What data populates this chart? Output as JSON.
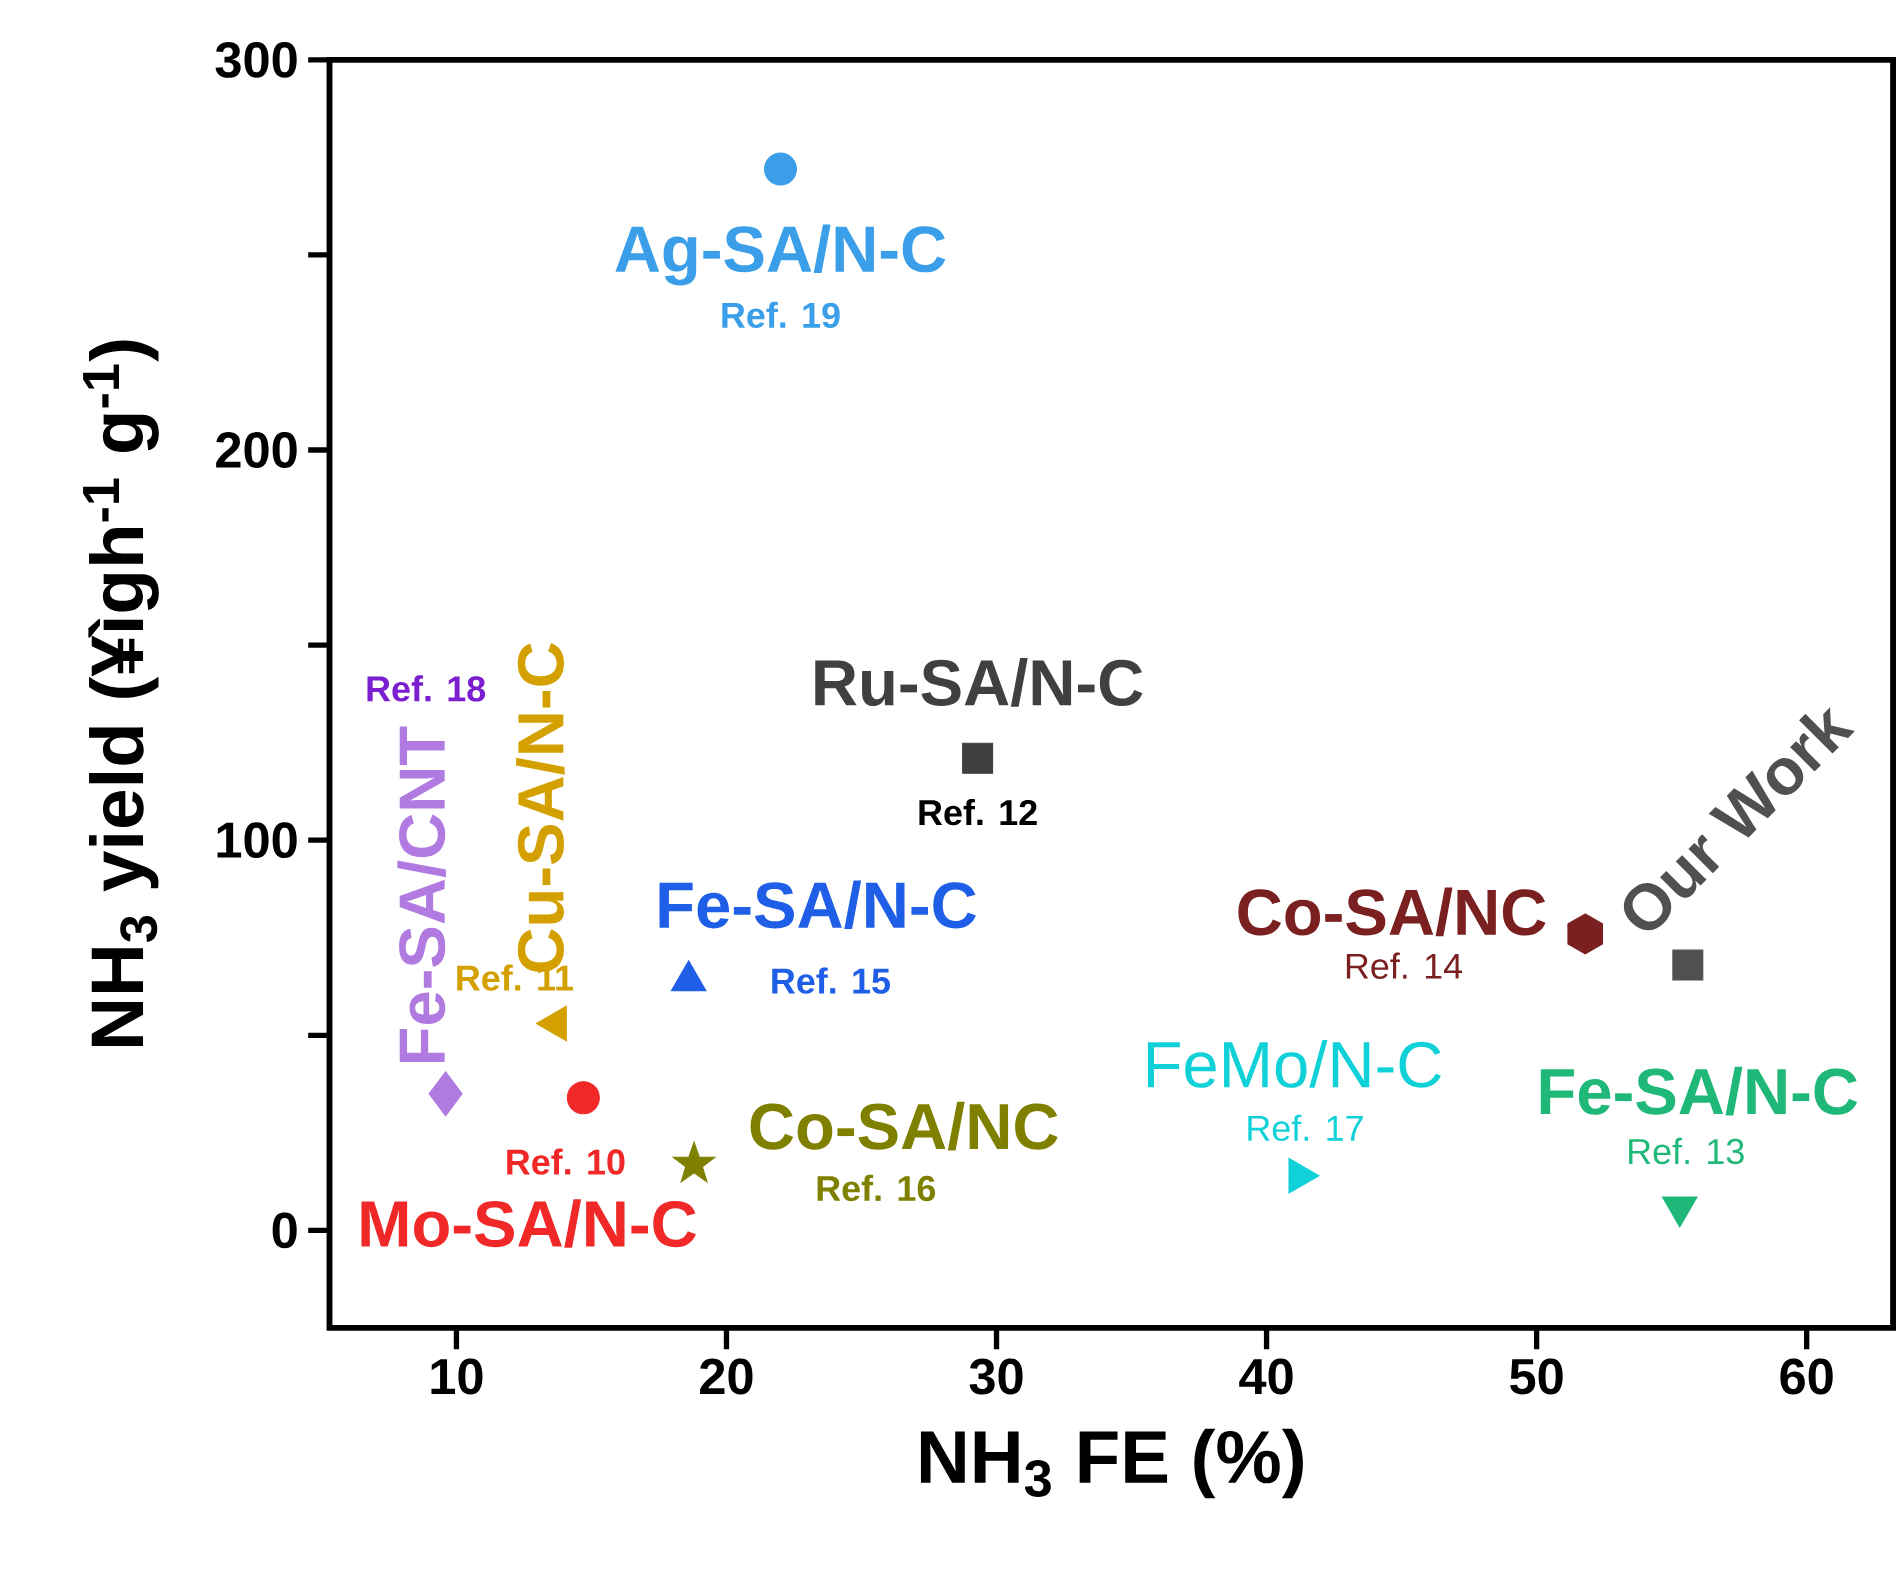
{
  "chart_data": {
    "type": "scatter",
    "xlabel": "NH$_{3}$ FE (%)",
    "ylabel": "NH$_{3}$ yield (¥ìgh$^{-1}$ g$^{-1}$)",
    "xlim": [
      5.3,
      63.2
    ],
    "ylim": [
      -25,
      300
    ],
    "xticks": [
      10,
      20,
      30,
      40,
      50,
      60
    ],
    "yticks": [
      0,
      {
        "value": 50,
        "label": null
      },
      100,
      {
        "value": 150,
        "label": null
      },
      200,
      {
        "value": 250,
        "label": null
      },
      300
    ],
    "series": [
      {
        "name": "Ag-SA/N-C",
        "color": "#3a9ee8",
        "x": [
          22.0
        ],
        "values": [
          272
        ],
        "marker": "circle"
      },
      {
        "name": "Ru-SA/N-C",
        "color": "#404040",
        "x": [
          29.3
        ],
        "values": [
          121
        ],
        "marker": "square"
      },
      {
        "name": "Fe-SA/N-C",
        "color": "#1f5fe8",
        "x": [
          18.6
        ],
        "values": [
          64
        ],
        "marker": "triangle"
      },
      {
        "name": "Cu-SA/N-C",
        "color": "#d4a000",
        "x": [
          13.7
        ],
        "values": [
          53
        ],
        "marker": "triangle-left"
      },
      {
        "name": "Fe-SA/CNT",
        "color": "#b07ae0",
        "x": [
          9.6
        ],
        "values": [
          35
        ],
        "marker": "diamond"
      },
      {
        "name": "Mo-SA/N-C",
        "color": "#f02828",
        "x": [
          14.7
        ],
        "values": [
          34
        ],
        "marker": "circle"
      },
      {
        "name": "Co-SA/NC",
        "color": "#808000",
        "x": [
          18.8
        ],
        "values": [
          17
        ],
        "marker": "star"
      },
      {
        "name": "FeMo/N-C",
        "color": "#10d0d8",
        "x": [
          41.2
        ],
        "values": [
          14
        ],
        "marker": "triangle-right"
      },
      {
        "name": "Co-SA/NC",
        "color": "#7a2020",
        "x": [
          51.8
        ],
        "values": [
          76
        ]
      },
      {
        "name": "Our Work",
        "color": "#505050",
        "x": [
          55.6
        ],
        "values": [
          68
        ],
        "marker": "square"
      },
      {
        "name": "Fe-SA/N-C",
        "color": "#20b878",
        "x": [
          55.3
        ],
        "values": [
          6
        ],
        "marker": "triangle-down"
      }
    ],
    "annotations": [
      "Ref. 19",
      "Ref. 12",
      "Ref. 15",
      "Ref. 11",
      "Ref. 18",
      "Ref. 10",
      "Ref. 16",
      "Ref. 17",
      "Ref. 14",
      "Ref. 13"
    ]
  }
}
